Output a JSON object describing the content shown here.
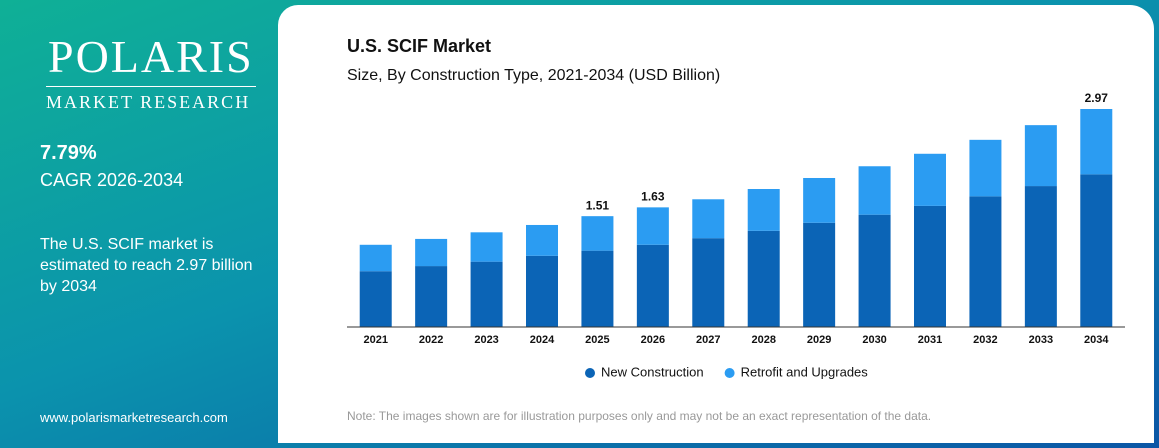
{
  "sidebar": {
    "logo_name": "POLARIS",
    "logo_tagline": "MARKET RESEARCH",
    "cagr_value": "7.79%",
    "cagr_label": "CAGR 2026-2034",
    "summary": "The U.S. SCIF market is estimated to reach 2.97 billion by 2034",
    "website": "www.polarismarketresearch.com"
  },
  "chart_data": {
    "type": "stacked_bar",
    "title": "U.S. SCIF Market",
    "subtitle": "Size, By Construction Type, 2021-2034 (USD Billion)",
    "categories": [
      "2021",
      "2022",
      "2023",
      "2024",
      "2025",
      "2026",
      "2027",
      "2028",
      "2029",
      "2030",
      "2031",
      "2032",
      "2033",
      "2034"
    ],
    "series": [
      {
        "name": "New Construction",
        "color": "#0b64b6",
        "values": [
          0.76,
          0.83,
          0.89,
          0.97,
          1.04,
          1.12,
          1.21,
          1.31,
          1.42,
          1.53,
          1.65,
          1.78,
          1.92,
          2.08
        ]
      },
      {
        "name": "Retrofit and Upgrades",
        "color": "#2b9cf2",
        "values": [
          0.36,
          0.37,
          0.4,
          0.42,
          0.47,
          0.51,
          0.53,
          0.57,
          0.61,
          0.66,
          0.71,
          0.77,
          0.83,
          0.89
        ]
      }
    ],
    "totals": [
      null,
      null,
      null,
      null,
      1.51,
      1.63,
      null,
      null,
      null,
      null,
      null,
      null,
      null,
      2.97
    ],
    "note": "Note: The images shown are for illustration purposes only and may not be an exact representation of the data."
  }
}
